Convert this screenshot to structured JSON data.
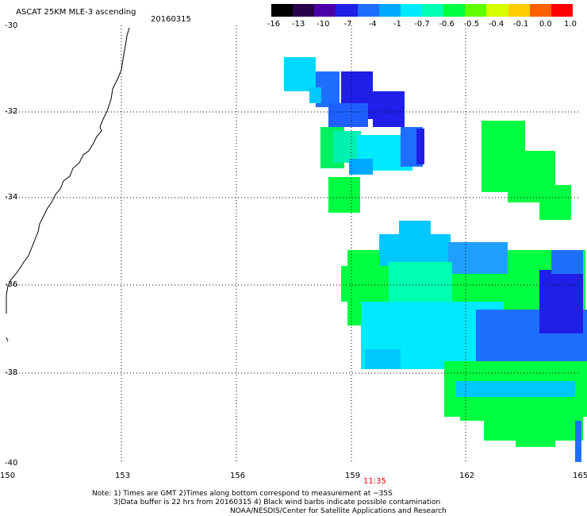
{
  "header": {
    "product": "ASCAT 25KM MLE-3 ascending",
    "date": "20160315"
  },
  "colorbar": {
    "labels": [
      "-16",
      "-13",
      "-10",
      "-7",
      "-4",
      "-1",
      "-0.7",
      "-0.6",
      "-0.5",
      "-0.4",
      "-0.1",
      "0.0",
      "1.0"
    ],
    "colors": [
      "#000000",
      "#2a0048",
      "#4e00a8",
      "#1f1fe8",
      "#1f6fff",
      "#00a8ff",
      "#00eaff",
      "#00ffb0",
      "#00ff40",
      "#60ff00",
      "#d8ff00",
      "#ffcc00",
      "#ff6000",
      "#ff0000"
    ]
  },
  "axes": {
    "x_ticks": [
      "150",
      "153",
      "156",
      "159",
      "162",
      "165"
    ],
    "y_ticks": [
      "-30",
      "-32",
      "-34",
      "-36",
      "-38",
      "-40"
    ],
    "time_label": "11:35",
    "time_color": "#ff0000"
  },
  "notes": {
    "line1": "Note: 1) Times are GMT 2)Times along bottom correspond to measurement at ~35S",
    "line2": "3)Data buffer is 22 hrs from 20160315 4) Black wind barbs indicate possible contamination",
    "line3": "NOAA/NESDIS/Center for Satellite Applications and Research"
  }
}
